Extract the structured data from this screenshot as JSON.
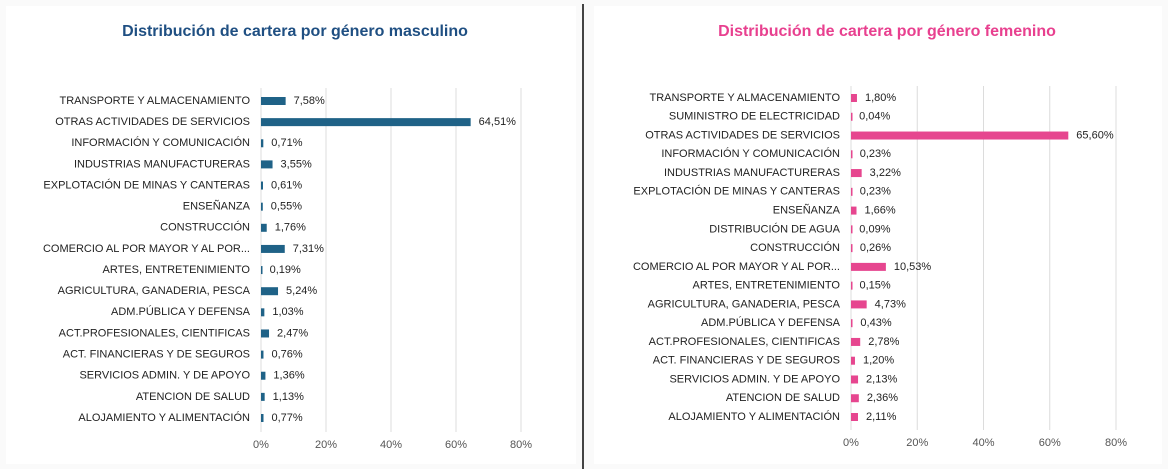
{
  "chart_data": [
    {
      "type": "bar",
      "orientation": "horizontal",
      "title": "Distribución de cartera por género masculino",
      "color": "#1f6287",
      "title_color": "#1f4f82",
      "categories": [
        "TRANSPORTE Y ALMACENAMIENTO",
        "OTRAS ACTIVIDADES DE SERVICIOS",
        "INFORMACIÓN Y COMUNICACIÓN",
        "INDUSTRIAS MANUFACTURERAS",
        "EXPLOTACIÓN DE MINAS Y CANTERAS",
        "ENSEÑANZA",
        "CONSTRUCCIÓN",
        "COMERCIO AL POR MAYOR Y AL POR...",
        "ARTES, ENTRETENIMIENTO",
        "AGRICULTURA, GANADERIA,  PESCA",
        "ADM.PÚBLICA Y DEFENSA",
        "ACT.PROFESIONALES, CIENTIFICAS",
        "ACT. FINANCIERAS Y DE SEGUROS",
        "SERVICIOS ADMIN. Y DE APOYO",
        "ATENCION DE SALUD",
        "ALOJAMIENTO Y ALIMENTACIÓN"
      ],
      "values": [
        7.58,
        64.51,
        0.71,
        3.55,
        0.61,
        0.55,
        1.76,
        7.31,
        0.19,
        5.24,
        1.03,
        2.47,
        0.76,
        1.36,
        1.13,
        0.77
      ],
      "value_labels": [
        "7,58%",
        "64,51%",
        "0,71%",
        "3,55%",
        "0,61%",
        "0,55%",
        "1,76%",
        "7,31%",
        "0,19%",
        "5,24%",
        "1,03%",
        "2,47%",
        "0,76%",
        "1,36%",
        "1,13%",
        "0,77%"
      ],
      "xlim": [
        0,
        80
      ],
      "xticks": [
        {
          "value": 0,
          "label": "0%"
        },
        {
          "value": 20,
          "label": "20%"
        },
        {
          "value": 40,
          "label": "40%"
        },
        {
          "value": 60,
          "label": "60%"
        },
        {
          "value": 80,
          "label": "80%"
        }
      ],
      "grid": true
    },
    {
      "type": "bar",
      "orientation": "horizontal",
      "title": "Distribución de cartera por género femenino",
      "color": "#e6468f",
      "title_color": "#e8408f",
      "categories": [
        "TRANSPORTE Y ALMACENAMIENTO",
        "SUMINISTRO DE ELECTRICIDAD",
        "OTRAS ACTIVIDADES DE SERVICIOS",
        "INFORMACIÓN Y COMUNICACIÓN",
        "INDUSTRIAS MANUFACTURERAS",
        "EXPLOTACIÓN DE MINAS Y CANTERAS",
        "ENSEÑANZA",
        "DISTRIBUCIÓN DE AGUA",
        "CONSTRUCCIÓN",
        "COMERCIO AL POR MAYOR Y AL POR...",
        "ARTES, ENTRETENIMIENTO",
        "AGRICULTURA, GANADERIA,  PESCA",
        "ADM.PÚBLICA Y DEFENSA",
        "ACT.PROFESIONALES, CIENTIFICAS",
        "ACT. FINANCIERAS Y DE SEGUROS",
        "SERVICIOS ADMIN. Y DE APOYO",
        "ATENCION DE SALUD",
        "ALOJAMIENTO Y ALIMENTACIÓN"
      ],
      "values": [
        1.8,
        0.04,
        65.6,
        0.23,
        3.22,
        0.23,
        1.66,
        0.09,
        0.26,
        10.53,
        0.15,
        4.73,
        0.43,
        2.78,
        1.2,
        2.13,
        2.36,
        2.11
      ],
      "value_labels": [
        "1,80%",
        "0,04%",
        "65,60%",
        "0,23%",
        "3,22%",
        "0,23%",
        "1,66%",
        "0,09%",
        "0,26%",
        "10,53%",
        "0,15%",
        "4,73%",
        "0,43%",
        "2,78%",
        "1,20%",
        "2,13%",
        "2,36%",
        "2,11%"
      ],
      "xlim": [
        0,
        80
      ],
      "xticks": [
        {
          "value": 0,
          "label": "0%"
        },
        {
          "value": 20,
          "label": "20%"
        },
        {
          "value": 40,
          "label": "40%"
        },
        {
          "value": 60,
          "label": "60%"
        },
        {
          "value": 80,
          "label": "80%"
        }
      ],
      "grid": true
    }
  ]
}
